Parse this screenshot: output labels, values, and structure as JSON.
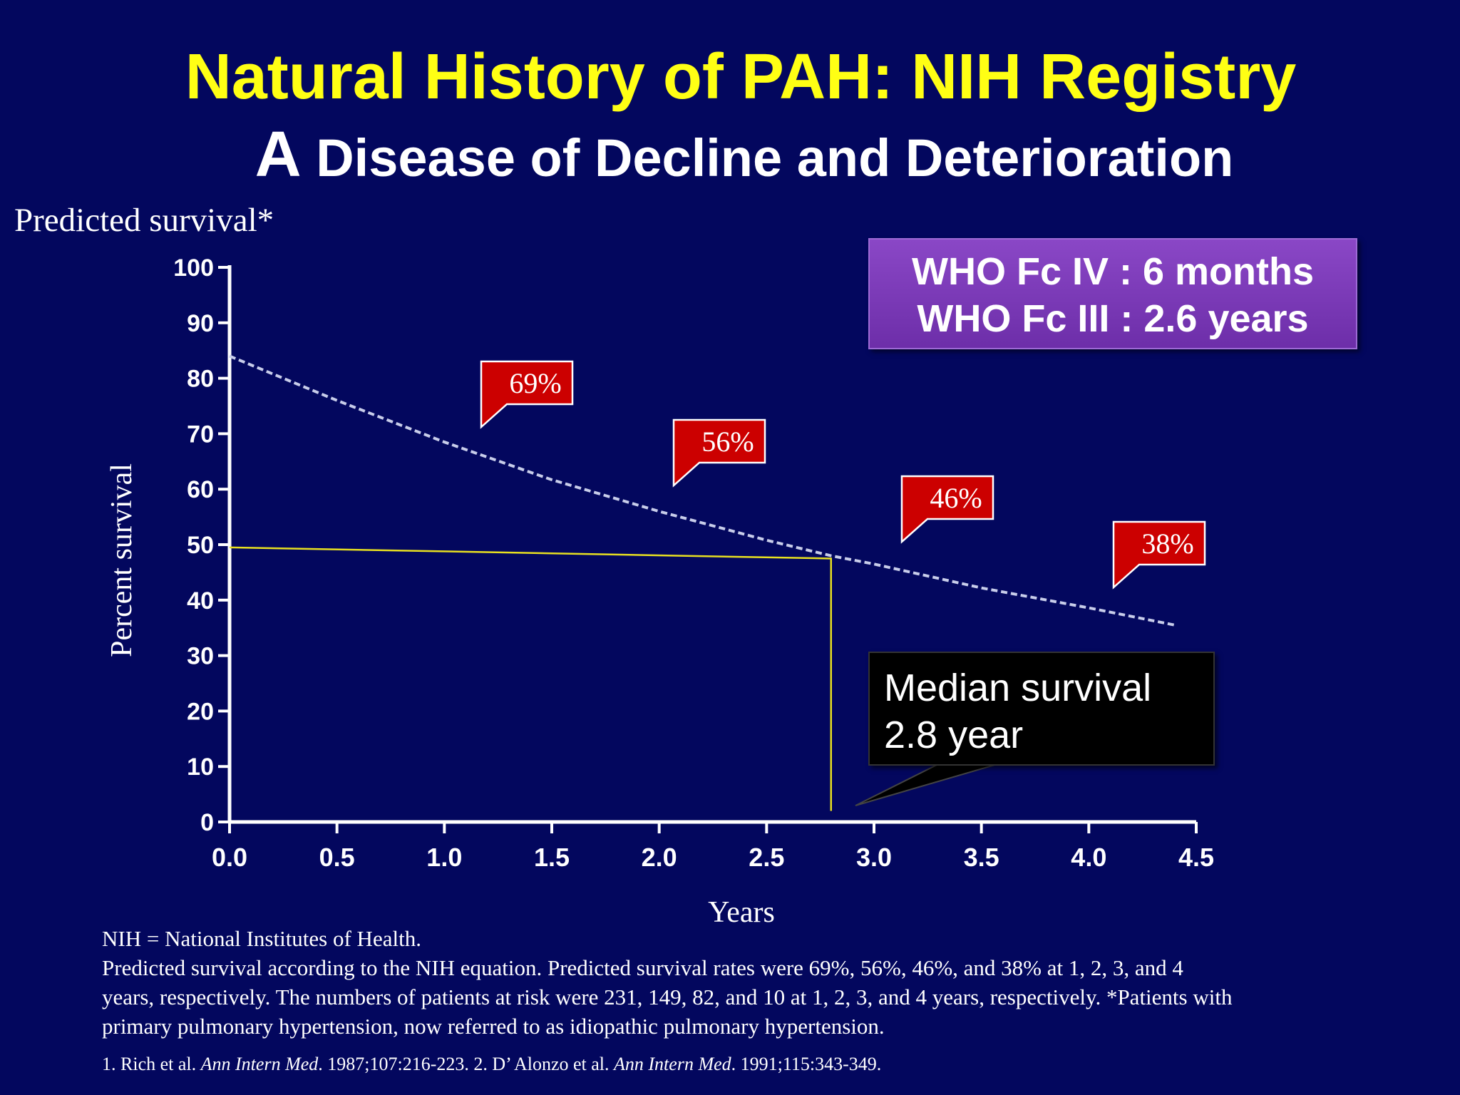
{
  "slide": {
    "title": "Natural History of PAH: NIH Registry",
    "subtitle_lead": "A",
    "subtitle_rest": " Disease of Decline and Deterioration",
    "predicted_label": "Predicted survival*"
  },
  "who_box": {
    "line1": "WHO Fc IV : 6 months",
    "line2": "WHO Fc III : 2.6 years"
  },
  "median_box": {
    "line1": "Median survival",
    "line2": "2.8 year"
  },
  "footnote": {
    "line1": "NIH = National Institutes of Health.",
    "line2": "Predicted survival according to the NIH equation. Predicted survival rates were 69%, 56%, 46%, and 38% at 1, 2, 3, and 4",
    "line3": "years, respectively. The numbers of patients at risk were 231, 149, 82, and 10 at 1, 2, 3, and 4 years, respectively. *Patients with",
    "line4": "primary pulmonary hypertension, now referred to as idiopathic pulmonary hypertension."
  },
  "references": {
    "r1_a": "1. Rich et al. ",
    "r1_journal": "Ann Intern Med",
    "r1_b": ". 1987;107:216-223. 2. D’   Alonzo et al. ",
    "r2_journal": "Ann Intern Med",
    "r2_b": ". 1991;115:343-349."
  },
  "colors": {
    "background": "#03075e",
    "title": "#ffff14",
    "callout": "#cc0000",
    "median_line": "#e8e020",
    "curve": "#c8cdea",
    "who_box": "#7a3bb8"
  },
  "chart_data": {
    "type": "line",
    "xlabel": "Years",
    "ylabel": "Percent survival",
    "xlim": [
      0,
      4.5
    ],
    "ylim": [
      0,
      100
    ],
    "x_ticks": [
      "0.0",
      "0.5",
      "1.0",
      "1.5",
      "2.0",
      "2.5",
      "3.0",
      "3.5",
      "4.0",
      "4.5"
    ],
    "y_ticks": [
      "0",
      "10",
      "20",
      "30",
      "40",
      "50",
      "60",
      "70",
      "80",
      "90",
      "100"
    ],
    "grid": false,
    "series": [
      {
        "style": "dashed",
        "x": [
          0.0,
          0.5,
          1.0,
          1.5,
          2.0,
          2.5,
          2.8,
          3.0,
          3.5,
          4.0,
          4.4
        ],
        "y": [
          84.0,
          76.0,
          68.5,
          61.7,
          56.0,
          50.8,
          48.0,
          46.5,
          42.2,
          38.6,
          35.5
        ]
      },
      {
        "style": "solid",
        "x": [
          0.0,
          2.8,
          2.8
        ],
        "y": [
          49.5,
          47.5,
          2.0
        ]
      }
    ],
    "annotations": [
      {
        "text": "69%",
        "x": 1,
        "y": 69
      },
      {
        "text": "56%",
        "x": 2,
        "y": 56
      },
      {
        "text": "46%",
        "x": 3,
        "y": 46
      },
      {
        "text": "38%",
        "x": 4,
        "y": 38
      }
    ]
  }
}
